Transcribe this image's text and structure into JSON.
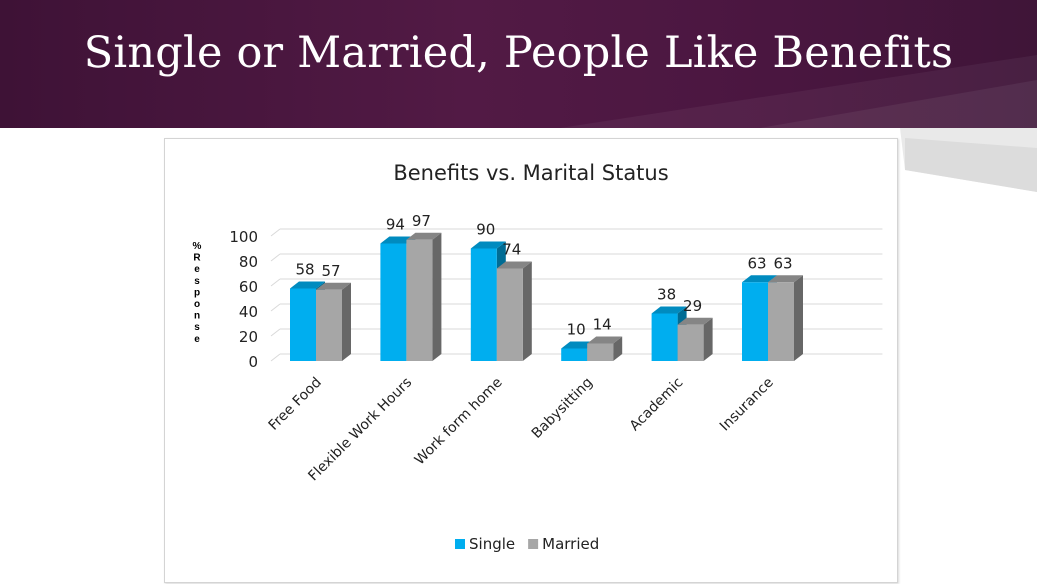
{
  "slide": {
    "title": "Single or Married, People Like Benefits"
  },
  "colors": {
    "banner": "#4a1640",
    "single": "#00aeef",
    "married": "#a6a6a6"
  },
  "chart_data": {
    "type": "bar",
    "title": "Benefits vs. Marital Status",
    "ylabel": "% Response",
    "xlabel": "",
    "ylim": [
      0,
      100
    ],
    "yticks": [
      0,
      20,
      40,
      60,
      80,
      100
    ],
    "categories": [
      "Free Food",
      "Flexible Work Hours",
      "Work form home",
      "Babysitting",
      "Academic",
      "Insurance"
    ],
    "series": [
      {
        "name": "Single",
        "values": [
          58,
          94,
          90,
          10,
          38,
          63
        ]
      },
      {
        "name": "Married",
        "values": [
          57,
          97,
          74,
          14,
          29,
          63
        ]
      }
    ],
    "legend": "bottom",
    "grid": true
  }
}
